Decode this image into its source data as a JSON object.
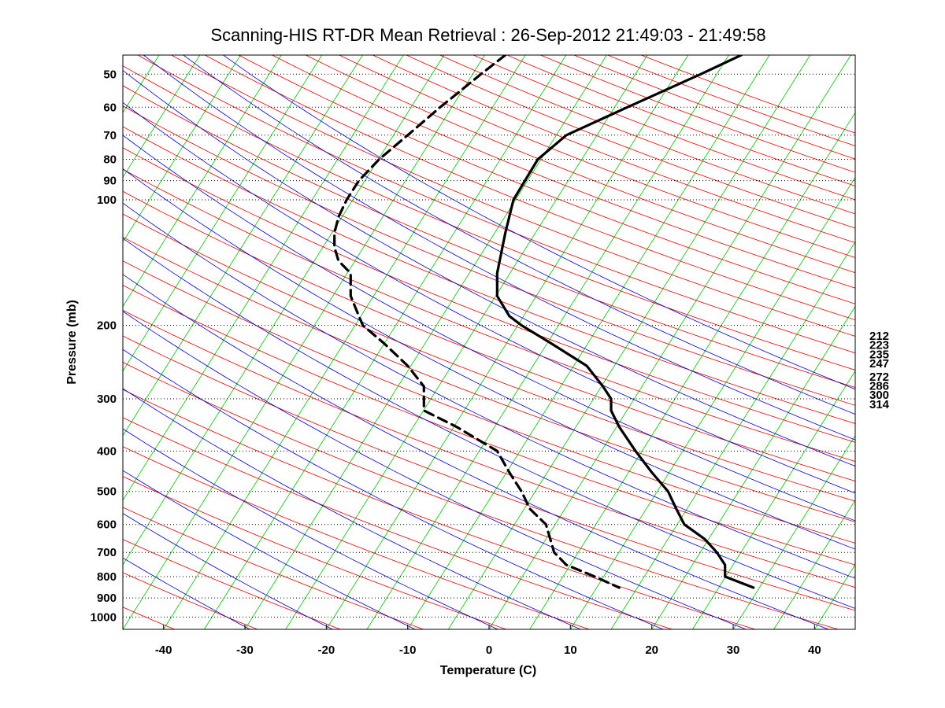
{
  "chart_data": {
    "type": "line",
    "subtype": "skew-T log-P diagram",
    "title": "Scanning-HIS RT-DR Mean Retrieval : 26-Sep-2012 21:49:03 - 21:49:58",
    "xlabel": "Temperature (C)",
    "ylabel": "Pressure (mb)",
    "xlim": [
      -45,
      45
    ],
    "ylim": [
      1070,
      45
    ],
    "y_scale": "log",
    "x_ticks": [
      -40,
      -30,
      -20,
      -10,
      0,
      10,
      20,
      30,
      40
    ],
    "y_ticks": [
      50,
      60,
      70,
      80,
      90,
      100,
      200,
      300,
      400,
      500,
      600,
      700,
      800,
      900,
      1000
    ],
    "grid": "horizontal dotted lines at pressure ticks",
    "legend": "none",
    "background_lines": {
      "isotherms_color": "#00c000",
      "dry_adiabats_color": "#e00000",
      "moist_adiabats_color": "#0000cc"
    },
    "right_annotations": [
      "212",
      "223",
      "235",
      "247",
      "272",
      "286",
      "300",
      "314"
    ],
    "series": [
      {
        "style": "solid",
        "color": "#000000",
        "pressure": [
          45,
          50,
          60,
          70,
          80,
          100,
          120,
          150,
          170,
          190,
          200,
          220,
          250,
          280,
          300,
          320,
          350,
          400,
          450,
          500,
          550,
          600,
          650,
          700,
          750,
          800,
          850
        ],
        "values": [
          31,
          26,
          17,
          9.5,
          6,
          3,
          2,
          1,
          1,
          2.5,
          4,
          7.5,
          12,
          14,
          15,
          15,
          16,
          18,
          20,
          22,
          23,
          24,
          26.5,
          28,
          29,
          29,
          32.5
        ]
      },
      {
        "style": "dashed",
        "color": "#000000",
        "pressure": [
          45,
          50,
          60,
          70,
          80,
          90,
          100,
          110,
          120,
          130,
          140,
          150,
          170,
          190,
          200,
          220,
          250,
          280,
          300,
          320,
          350,
          400,
          450,
          500,
          550,
          600,
          700,
          750,
          800,
          850
        ],
        "values": [
          2,
          -1,
          -6,
          -10,
          -13.5,
          -16,
          -17.5,
          -18.5,
          -19,
          -19,
          -18.5,
          -17,
          -17,
          -16,
          -15.5,
          -13,
          -10,
          -8,
          -8,
          -8,
          -4,
          1,
          2.5,
          4,
          5,
          7,
          8,
          9.5,
          13,
          16
        ]
      }
    ]
  }
}
